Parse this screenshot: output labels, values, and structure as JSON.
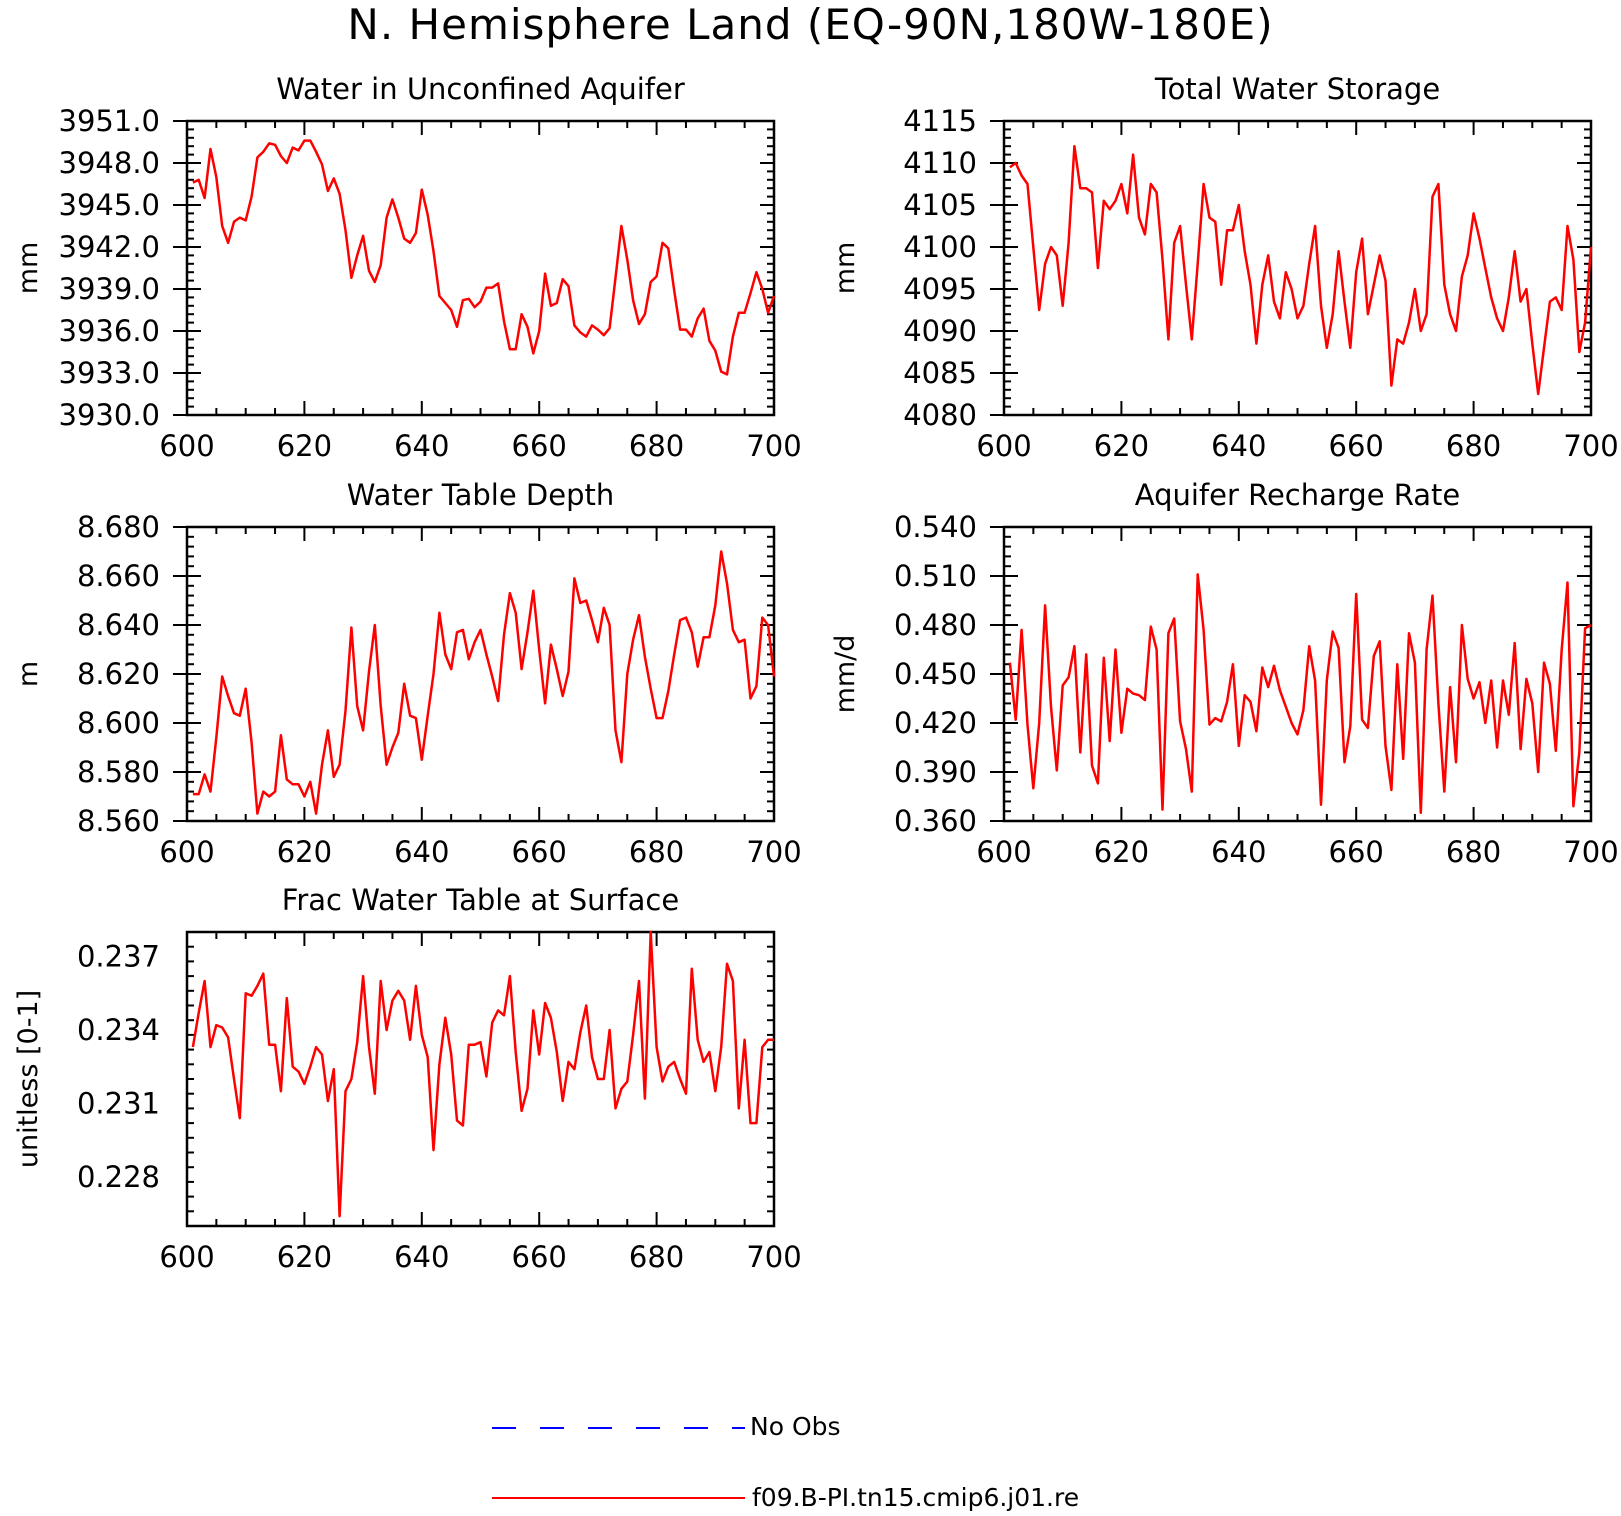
{
  "figure": {
    "title": "N. Hemisphere Land (EQ-90N,180W-180E)"
  },
  "legend": [
    {
      "label": "No Obs",
      "color": "#0000ff",
      "style": "dashed"
    },
    {
      "label": "f09.B-PI.tn15.cmip6.j01.re",
      "color": "#ff0000",
      "style": "solid"
    }
  ],
  "chart_data": [
    {
      "type": "line",
      "title": "Water in Unconfined Aquifer",
      "xlabel": "",
      "ylabel": "mm",
      "xlim": [
        600,
        700
      ],
      "ylim": [
        3930.0,
        3951.0
      ],
      "xticks": [
        600,
        620,
        640,
        660,
        680,
        700
      ],
      "yticks": [
        "3930.0",
        "3933.0",
        "3936.0",
        "3939.0",
        "3942.0",
        "3945.0",
        "3948.0",
        "3951.0"
      ],
      "x_start": 601,
      "series": [
        {
          "color": "#ff0000",
          "values": [
            3946.6,
            3946.8,
            3945.5,
            3949.0,
            3947.0,
            3943.5,
            3942.3,
            3943.8,
            3944.1,
            3943.9,
            3945.6,
            3948.4,
            3948.8,
            3949.4,
            3949.3,
            3948.5,
            3948.0,
            3949.1,
            3948.9,
            3949.6,
            3949.6,
            3948.8,
            3947.9,
            3946.0,
            3946.9,
            3945.8,
            3943.2,
            3939.8,
            3941.4,
            3942.8,
            3940.3,
            3939.5,
            3940.7,
            3944.1,
            3945.4,
            3944.1,
            3942.6,
            3942.3,
            3943.0,
            3946.1,
            3944.3,
            3941.7,
            3938.5,
            3938.0,
            3937.5,
            3936.3,
            3938.2,
            3938.3,
            3937.7,
            3938.1,
            3939.1,
            3939.1,
            3939.4,
            3936.7,
            3934.7,
            3934.7,
            3937.2,
            3936.3,
            3934.4,
            3936.0,
            3940.1,
            3937.8,
            3938.0,
            3939.7,
            3939.2,
            3936.4,
            3935.9,
            3935.6,
            3936.4,
            3936.1,
            3935.7,
            3936.2,
            3939.8,
            3943.5,
            3941.1,
            3938.2,
            3936.5,
            3937.2,
            3939.5,
            3939.9,
            3942.3,
            3941.9,
            3938.9,
            3936.1,
            3936.1,
            3935.6,
            3936.9,
            3937.6,
            3935.3,
            3934.6,
            3933.1,
            3932.9,
            3935.6,
            3937.3,
            3937.3,
            3938.7,
            3940.2,
            3939.0,
            3937.3,
            3938.5
          ]
        }
      ]
    },
    {
      "type": "line",
      "title": "Total Water Storage",
      "xlabel": "",
      "ylabel": "mm",
      "xlim": [
        600,
        700
      ],
      "ylim": [
        4080,
        4115
      ],
      "xticks": [
        600,
        620,
        640,
        660,
        680,
        700
      ],
      "yticks": [
        "4080",
        "4085",
        "4090",
        "4095",
        "4100",
        "4105",
        "4110",
        "4115"
      ],
      "x_start": 601,
      "series": [
        {
          "color": "#ff0000",
          "values": [
            4109.5,
            4110.0,
            4108.5,
            4107.5,
            4100.0,
            4092.5,
            4098.0,
            4100.0,
            4099.0,
            4093.0,
            4100.5,
            4112.0,
            4107.0,
            4107.0,
            4106.5,
            4097.5,
            4105.5,
            4104.5,
            4105.5,
            4107.5,
            4104.0,
            4111.0,
            4103.5,
            4101.5,
            4107.5,
            4106.5,
            4098.5,
            4089.0,
            4100.5,
            4102.5,
            4095.5,
            4089.0,
            4098.0,
            4107.5,
            4103.5,
            4103.0,
            4095.5,
            4102.0,
            4102.0,
            4105.0,
            4099.5,
            4095.5,
            4088.5,
            4095.5,
            4099.0,
            4093.5,
            4091.5,
            4097.0,
            4095.0,
            4091.5,
            4093.0,
            4098.0,
            4102.5,
            4093.0,
            4088.0,
            4092.0,
            4099.5,
            4093.5,
            4088.0,
            4097.0,
            4101.0,
            4092.0,
            4095.5,
            4099.0,
            4096.0,
            4083.5,
            4089.0,
            4088.5,
            4091.0,
            4095.0,
            4090.0,
            4092.0,
            4106.0,
            4107.5,
            4095.5,
            4092.0,
            4090.0,
            4096.5,
            4099.0,
            4104.0,
            4101.0,
            4097.5,
            4094.0,
            4091.5,
            4090.0,
            4094.0,
            4099.5,
            4093.5,
            4095.0,
            4088.5,
            4082.5,
            4088.0,
            4093.5,
            4094.0,
            4092.5,
            4102.5,
            4098.5,
            4087.5,
            4091.0,
            4100.0
          ]
        }
      ]
    },
    {
      "type": "line",
      "title": "Water Table Depth",
      "xlabel": "",
      "ylabel": "m",
      "xlim": [
        600,
        700
      ],
      "ylim": [
        8.56,
        8.68
      ],
      "xticks": [
        600,
        620,
        640,
        660,
        680,
        700
      ],
      "yticks": [
        "8.560",
        "8.580",
        "8.600",
        "8.620",
        "8.640",
        "8.660",
        "8.680"
      ],
      "x_start": 601,
      "series": [
        {
          "color": "#ff0000",
          "values": [
            8.571,
            8.571,
            8.579,
            8.572,
            8.594,
            8.619,
            8.611,
            8.604,
            8.603,
            8.614,
            8.592,
            8.563,
            8.572,
            8.57,
            8.572,
            8.595,
            8.577,
            8.575,
            8.575,
            8.57,
            8.576,
            8.563,
            8.583,
            8.597,
            8.578,
            8.583,
            8.605,
            8.639,
            8.607,
            8.597,
            8.621,
            8.64,
            8.607,
            8.583,
            8.59,
            8.596,
            8.616,
            8.603,
            8.602,
            8.585,
            8.603,
            8.62,
            8.645,
            8.628,
            8.622,
            8.637,
            8.638,
            8.626,
            8.633,
            8.638,
            8.628,
            8.619,
            8.609,
            8.636,
            8.653,
            8.645,
            8.622,
            8.637,
            8.654,
            8.63,
            8.608,
            8.632,
            8.622,
            8.611,
            8.621,
            8.659,
            8.649,
            8.65,
            8.642,
            8.633,
            8.647,
            8.64,
            8.597,
            8.584,
            8.62,
            8.634,
            8.644,
            8.627,
            8.614,
            8.602,
            8.602,
            8.613,
            8.628,
            8.642,
            8.643,
            8.637,
            8.623,
            8.635,
            8.635,
            8.648,
            8.67,
            8.657,
            8.638,
            8.633,
            8.634,
            8.61,
            8.615,
            8.643,
            8.64,
            8.619
          ]
        }
      ]
    },
    {
      "type": "line",
      "title": "Aquifer Recharge Rate",
      "xlabel": "",
      "ylabel": "mm/d",
      "xlim": [
        600,
        700
      ],
      "ylim": [
        0.36,
        0.54
      ],
      "xticks": [
        600,
        620,
        640,
        660,
        680,
        700
      ],
      "yticks": [
        "0.360",
        "0.390",
        "0.420",
        "0.450",
        "0.480",
        "0.510",
        "0.540"
      ],
      "x_start": 601,
      "series": [
        {
          "color": "#ff0000",
          "values": [
            0.457,
            0.422,
            0.477,
            0.419,
            0.38,
            0.42,
            0.492,
            0.43,
            0.391,
            0.443,
            0.448,
            0.467,
            0.402,
            0.462,
            0.394,
            0.383,
            0.46,
            0.409,
            0.465,
            0.414,
            0.441,
            0.438,
            0.437,
            0.434,
            0.479,
            0.465,
            0.367,
            0.475,
            0.484,
            0.421,
            0.404,
            0.378,
            0.511,
            0.477,
            0.419,
            0.423,
            0.421,
            0.433,
            0.456,
            0.406,
            0.437,
            0.433,
            0.415,
            0.454,
            0.442,
            0.455,
            0.44,
            0.43,
            0.42,
            0.413,
            0.428,
            0.467,
            0.446,
            0.37,
            0.446,
            0.476,
            0.466,
            0.396,
            0.418,
            0.499,
            0.422,
            0.417,
            0.461,
            0.47,
            0.406,
            0.379,
            0.456,
            0.398,
            0.475,
            0.457,
            0.365,
            0.465,
            0.498,
            0.432,
            0.378,
            0.442,
            0.396,
            0.48,
            0.447,
            0.435,
            0.445,
            0.42,
            0.446,
            0.405,
            0.446,
            0.425,
            0.469,
            0.404,
            0.447,
            0.432,
            0.39,
            0.457,
            0.444,
            0.403,
            0.465,
            0.506,
            0.369,
            0.402,
            0.478,
            0.48
          ]
        }
      ]
    },
    {
      "type": "line",
      "title": "Frac Water Table at Surface",
      "xlabel": "",
      "ylabel": "unitless [0-1]",
      "xlim": [
        600,
        700
      ],
      "ylim": [
        0.226,
        0.238
      ],
      "xticks": [
        600,
        620,
        640,
        660,
        680,
        700
      ],
      "yticks": [
        "0.228",
        "0.231",
        "0.234",
        "0.237"
      ],
      "x_start": 601,
      "series": [
        {
          "color": "#ff0000",
          "values": [
            0.2333,
            0.2347,
            0.236,
            0.2333,
            0.2342,
            0.2341,
            0.2337,
            0.232,
            0.2304,
            0.2355,
            0.2354,
            0.2358,
            0.2363,
            0.2334,
            0.2334,
            0.2315,
            0.2353,
            0.2325,
            0.2323,
            0.2318,
            0.2325,
            0.2333,
            0.233,
            0.2311,
            0.2324,
            0.2264,
            0.2315,
            0.232,
            0.2335,
            0.2362,
            0.2333,
            0.2314,
            0.236,
            0.234,
            0.2352,
            0.2356,
            0.2352,
            0.2336,
            0.2358,
            0.2338,
            0.2329,
            0.2291,
            0.2326,
            0.2345,
            0.233,
            0.2303,
            0.2301,
            0.2334,
            0.2334,
            0.2335,
            0.2321,
            0.2343,
            0.2348,
            0.2346,
            0.2362,
            0.2331,
            0.2307,
            0.2316,
            0.2348,
            0.233,
            0.2351,
            0.2345,
            0.2331,
            0.2311,
            0.2327,
            0.2324,
            0.2339,
            0.235,
            0.2329,
            0.232,
            0.232,
            0.234,
            0.2308,
            0.2316,
            0.2319,
            0.2338,
            0.236,
            0.2312,
            0.238,
            0.2333,
            0.2319,
            0.2325,
            0.2327,
            0.232,
            0.2314,
            0.2365,
            0.2336,
            0.2327,
            0.2331,
            0.2315,
            0.2333,
            0.2367,
            0.236,
            0.2308,
            0.2336,
            0.2302,
            0.2302,
            0.2333,
            0.2336,
            0.2336
          ]
        }
      ]
    }
  ]
}
